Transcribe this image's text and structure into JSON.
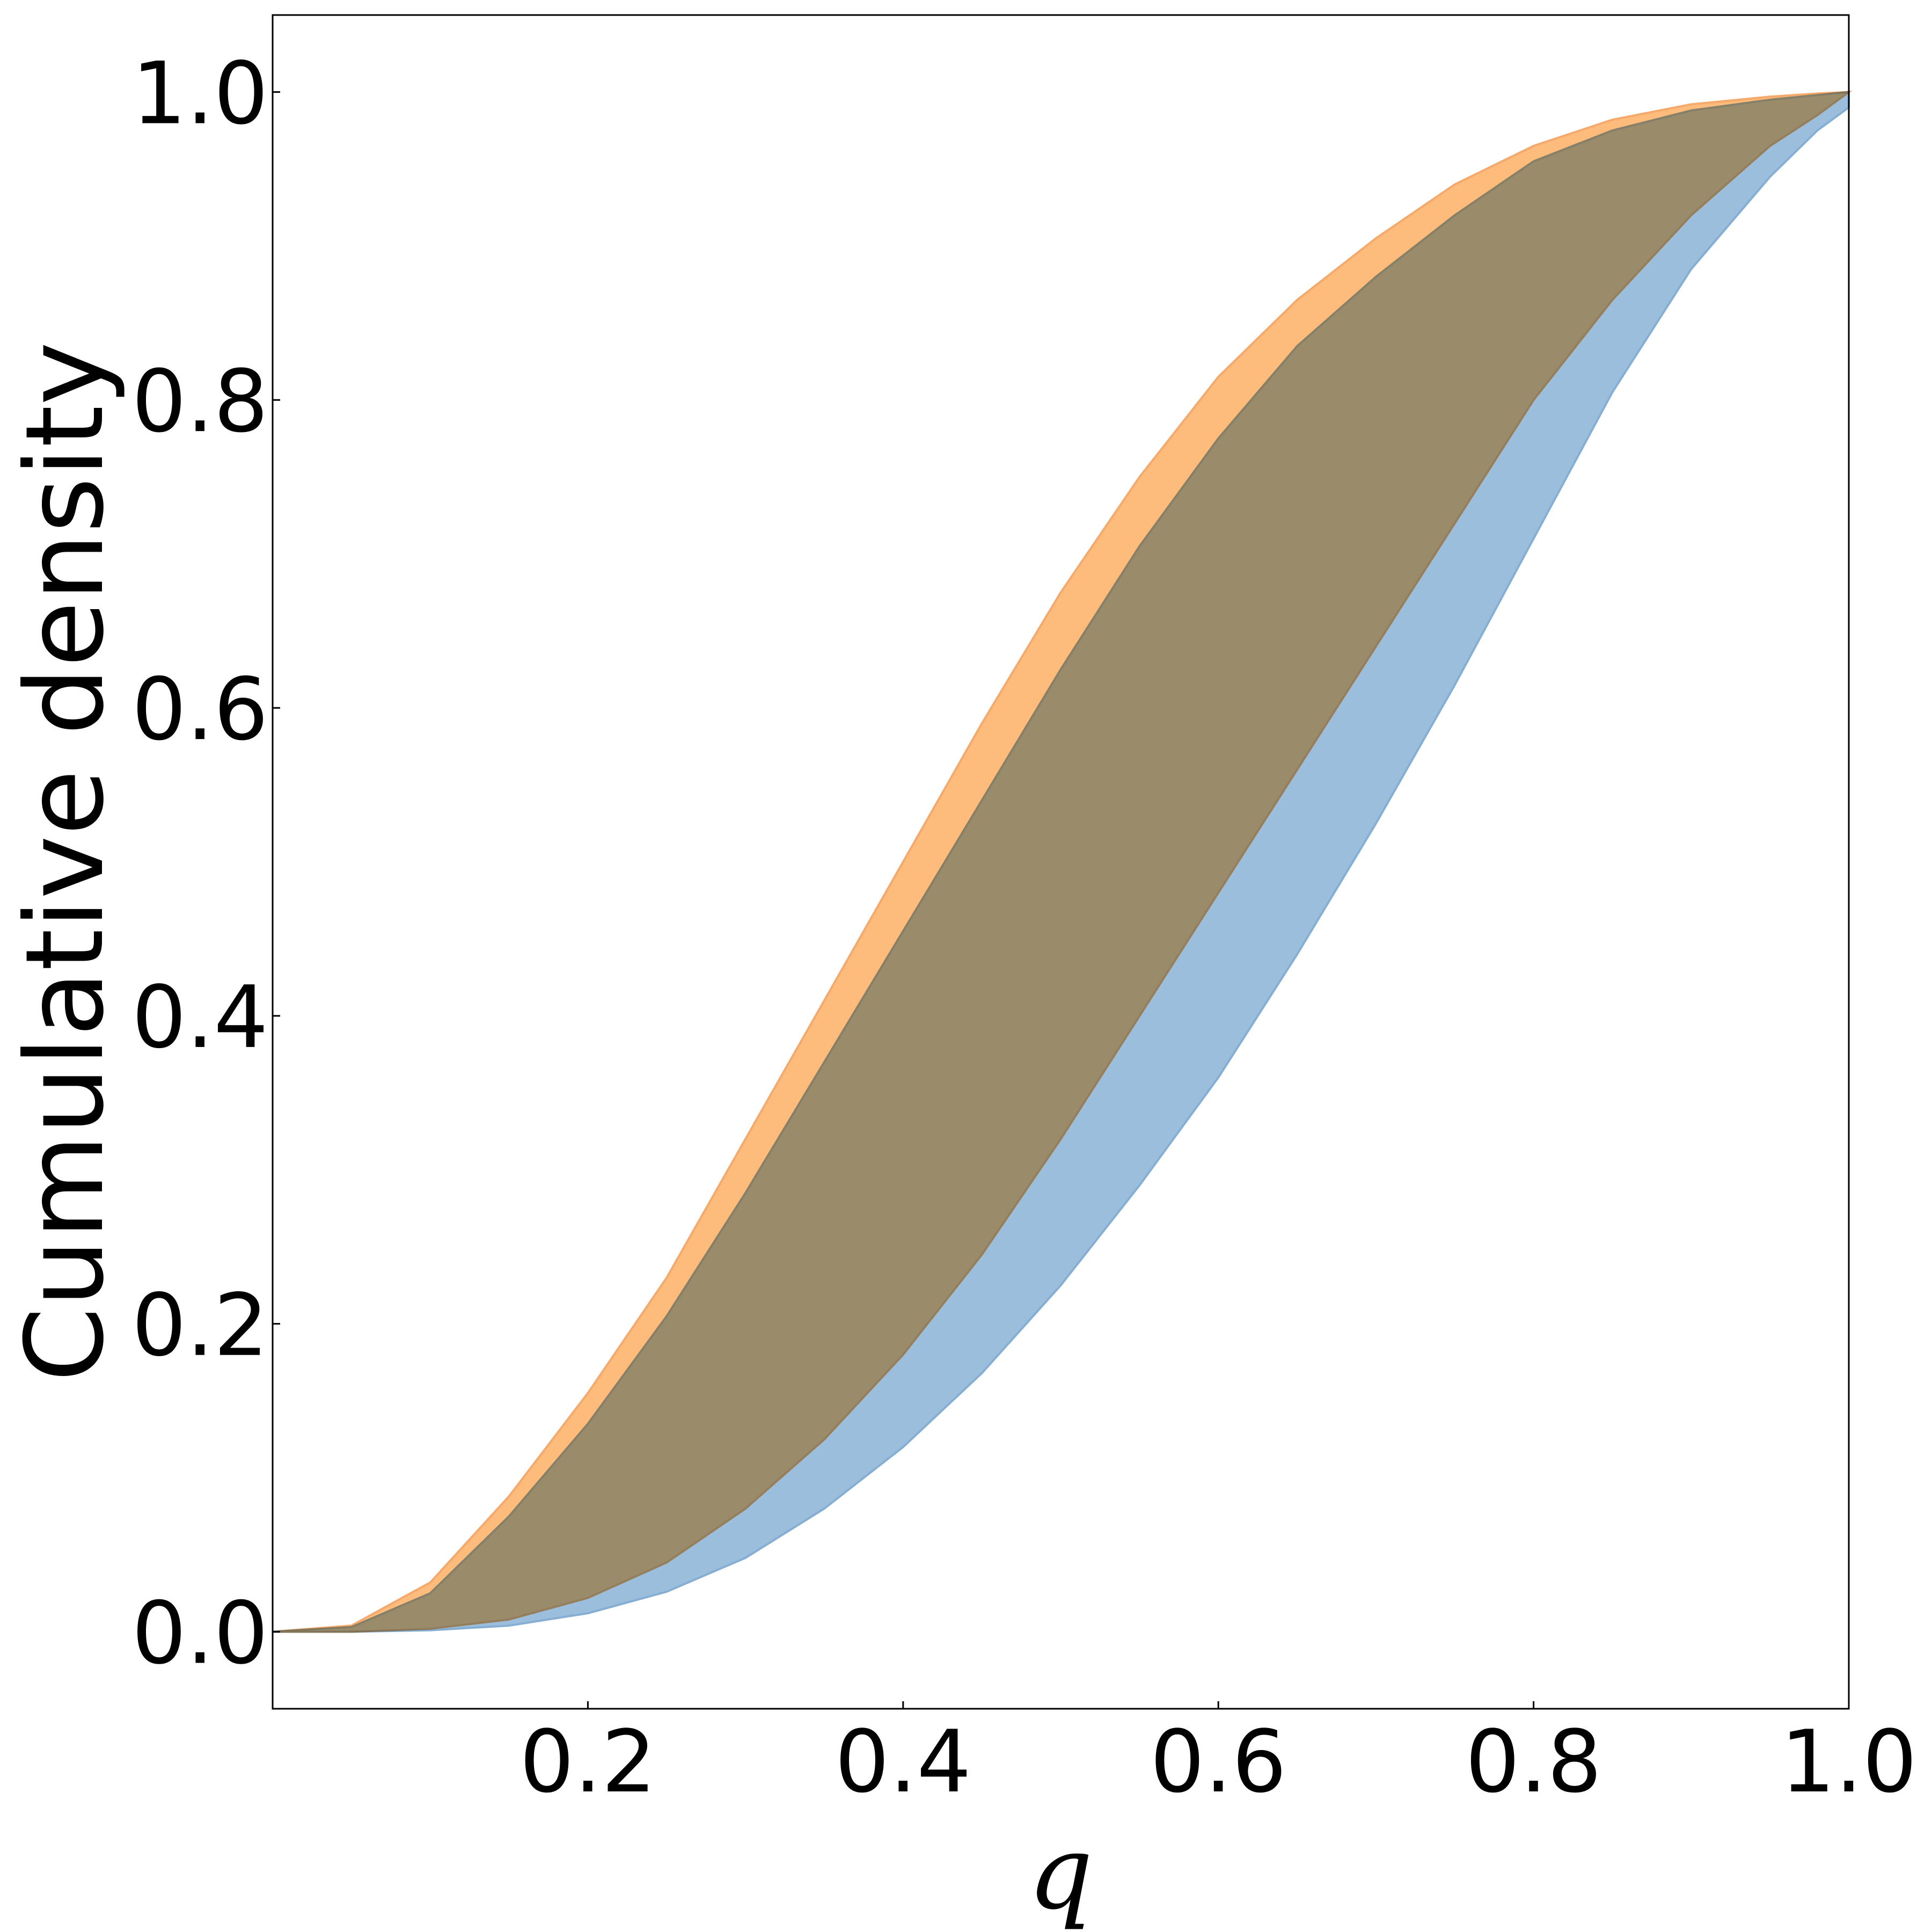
{
  "chart_data": {
    "type": "area",
    "xlabel": "q",
    "ylabel": "Cumulative density",
    "xlim": [
      0.0,
      1.0
    ],
    "ylim": [
      -0.05,
      1.05
    ],
    "xticks": [
      0.2,
      0.4,
      0.6,
      0.8,
      1.0
    ],
    "xtick_labels": [
      "0.2",
      "0.4",
      "0.6",
      "0.8",
      "1.0"
    ],
    "yticks": [
      0.0,
      0.2,
      0.4,
      0.6,
      0.8,
      1.0
    ],
    "ytick_labels": [
      "0.0",
      "0.2",
      "0.4",
      "0.6",
      "0.8",
      "1.0"
    ],
    "grid": false,
    "legend": false,
    "series": [
      {
        "color": "#9bbedc",
        "stroke": "#86aed3",
        "x": [
          0.0,
          0.05,
          0.1,
          0.15,
          0.2,
          0.25,
          0.3,
          0.35,
          0.4,
          0.45,
          0.5,
          0.55,
          0.6,
          0.65,
          0.7,
          0.75,
          0.8,
          0.85,
          0.9,
          0.95,
          0.98,
          1.0
        ],
        "upper": [
          0.0,
          0.003,
          0.025,
          0.075,
          0.135,
          0.205,
          0.285,
          0.37,
          0.455,
          0.54,
          0.625,
          0.705,
          0.775,
          0.835,
          0.88,
          0.92,
          0.955,
          0.975,
          0.988,
          0.995,
          0.998,
          1.0
        ],
        "lower": [
          0.0,
          0.0,
          0.001,
          0.004,
          0.012,
          0.026,
          0.048,
          0.08,
          0.12,
          0.168,
          0.225,
          0.29,
          0.36,
          0.44,
          0.525,
          0.615,
          0.71,
          0.805,
          0.885,
          0.945,
          0.975,
          0.99
        ]
      },
      {
        "color": "#fdbb7c",
        "stroke": "#f5a96a",
        "x": [
          0.0,
          0.05,
          0.1,
          0.15,
          0.2,
          0.25,
          0.3,
          0.35,
          0.4,
          0.45,
          0.5,
          0.55,
          0.6,
          0.65,
          0.7,
          0.75,
          0.8,
          0.85,
          0.9,
          0.95,
          0.98,
          1.0
        ],
        "upper": [
          0.0,
          0.004,
          0.032,
          0.088,
          0.155,
          0.23,
          0.32,
          0.41,
          0.5,
          0.59,
          0.675,
          0.75,
          0.815,
          0.865,
          0.905,
          0.94,
          0.965,
          0.982,
          0.992,
          0.997,
          0.999,
          1.0
        ],
        "lower": [
          0.0,
          0.0,
          0.002,
          0.008,
          0.022,
          0.045,
          0.08,
          0.125,
          0.18,
          0.245,
          0.32,
          0.4,
          0.48,
          0.56,
          0.64,
          0.72,
          0.8,
          0.865,
          0.92,
          0.965,
          0.985,
          1.0
        ]
      }
    ]
  }
}
